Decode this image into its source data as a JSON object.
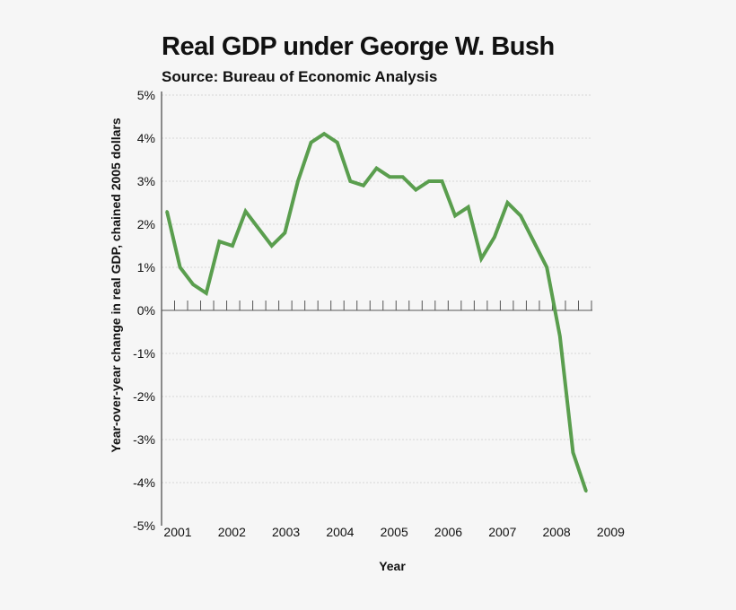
{
  "chart_data": {
    "type": "line",
    "title": "Real GDP under George W. Bush",
    "subtitle": "Source: Bureau of Economic Analysis",
    "xlabel": "Year",
    "ylabel": "Year-over-year change in real GDP, chained 2005 dollars",
    "ylim": [
      -5,
      5
    ],
    "yticks": [
      "5%",
      "4%",
      "3%",
      "2%",
      "1%",
      "0%",
      "-1%",
      "-2%",
      "-3%",
      "-4%",
      "-5%"
    ],
    "xtick_labels": [
      "2001",
      "2002",
      "2003",
      "2004",
      "2005",
      "2006",
      "2007",
      "2008",
      "2009"
    ],
    "grid": true,
    "line_color": "#5a9e4e",
    "series": [
      {
        "x": [
          "2001Q1",
          "2001Q2",
          "2001Q3",
          "2001Q4",
          "2002Q1",
          "2002Q2",
          "2002Q3",
          "2002Q4",
          "2003Q1",
          "2003Q2",
          "2003Q3",
          "2003Q4",
          "2004Q1",
          "2004Q2",
          "2004Q3",
          "2004Q4",
          "2005Q1",
          "2005Q2",
          "2005Q3",
          "2005Q4",
          "2006Q1",
          "2006Q2",
          "2006Q3",
          "2006Q4",
          "2007Q1",
          "2007Q2",
          "2007Q3",
          "2007Q4",
          "2008Q1",
          "2008Q2",
          "2008Q3",
          "2008Q4",
          "2009Q1"
        ],
        "values": [
          2.3,
          1.0,
          0.6,
          0.4,
          1.6,
          1.5,
          2.3,
          1.9,
          1.5,
          1.8,
          3.0,
          3.9,
          4.1,
          3.9,
          3.0,
          2.9,
          3.3,
          3.1,
          3.1,
          2.8,
          3.0,
          3.0,
          2.2,
          2.4,
          1.2,
          1.7,
          2.5,
          2.2,
          1.6,
          1.0,
          -0.6,
          -3.3,
          -4.2
        ]
      }
    ]
  }
}
